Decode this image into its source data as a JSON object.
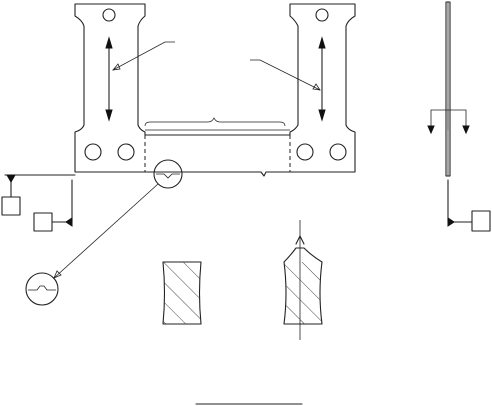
{
  "figure": {
    "description_visible_text": "",
    "colors": {
      "ink": "#222222",
      "paper": "#ffffff",
      "marker": "#111111"
    }
  }
}
